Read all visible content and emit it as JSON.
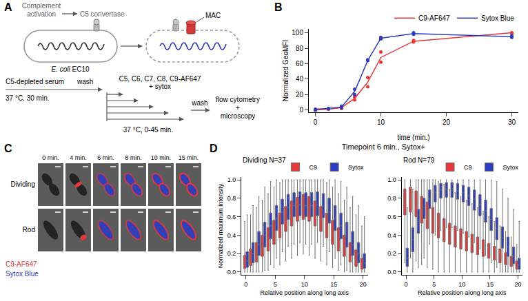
{
  "panel_a": {
    "letter": "A",
    "complement": [
      "Complement",
      "activation"
    ],
    "convertase": "C5 convertase",
    "mac": "MAC",
    "strain": "E. coli EC10",
    "step1": [
      "C5-depleted serum",
      "37 °C, 30 min."
    ],
    "wash1": "wash",
    "step2": [
      "C5, C6, C7, C8, C9-AF647",
      "+ sytox"
    ],
    "step2_condition": "37 °C, 0-45 min.",
    "wash2": "wash",
    "readout": [
      "flow cytometry",
      "+",
      "microscopy"
    ]
  },
  "panel_b": {
    "letter": "B"
  },
  "panel_c": {
    "letter": "C",
    "times": [
      "0 min.",
      "4 min.",
      "6 min.",
      "8 min.",
      "10 min.",
      "15 min."
    ],
    "rows": [
      "Dividing",
      "Rod"
    ],
    "channels": [
      {
        "name": "C9-AF647",
        "color": "#e5383b"
      },
      {
        "name": "Sytox Blue",
        "color": "#2e3cc0"
      }
    ]
  },
  "panel_d": {
    "letter": "D",
    "title": "Timepoint 6 min., Sytox+"
  },
  "chart_data": [
    {
      "type": "line",
      "x": [
        0,
        2,
        4,
        6,
        8,
        10,
        15,
        30
      ],
      "xlabel": "time (min.)",
      "ylabel": "Normalized GeoMFI",
      "xlim": [
        -1,
        31
      ],
      "xticks": [
        0,
        10,
        20,
        30
      ],
      "ylim": [
        -3,
        105
      ],
      "yticks": [
        0,
        20,
        40,
        60,
        80,
        100
      ],
      "grid": false,
      "legend": "top",
      "marker": "circle",
      "series": [
        {
          "name": "C9-AF647",
          "color": "#e5383b",
          "values": [
            0,
            1,
            3,
            15,
            36,
            68,
            89,
            100
          ],
          "replicates": [
            [
              0,
              1,
              2,
              13,
              30,
              62,
              88,
              100
            ],
            [
              0,
              1,
              4,
              17,
              42,
              75,
              90,
              99
            ]
          ]
        },
        {
          "name": "Sytox Blue",
          "color": "#2e3cc0",
          "values": [
            1,
            2,
            4,
            24,
            64,
            93,
            99,
            95
          ],
          "replicates": [
            [
              0,
              2,
              3,
              20,
              64,
              92,
              98,
              94
            ],
            [
              1,
              2,
              5,
              27,
              65,
              94,
              100,
              96
            ]
          ]
        }
      ]
    },
    {
      "type": "box",
      "title": "Dividing N=37",
      "x": [
        0,
        1,
        2,
        3,
        4,
        5,
        6,
        7,
        8,
        9,
        10,
        11,
        12,
        13,
        14,
        15,
        16,
        17,
        18,
        19,
        20
      ],
      "xlabel": "Relative position along long axis",
      "ylabel": "Normalized maximum intensity",
      "xlim": [
        -0.8,
        20.8
      ],
      "xticks": [
        0,
        5,
        10,
        15,
        20
      ],
      "ylim": [
        -0.03,
        1.03
      ],
      "yticks": [
        {
          "value": 0,
          "label": "0.0"
        },
        {
          "value": 0.2,
          "label": "0.2"
        },
        {
          "value": 0.4,
          "label": "0.4"
        },
        {
          "value": 0.6,
          "label": "0.6"
        },
        {
          "value": 0.8,
          "label": "0.8"
        },
        {
          "value": 1,
          "label": "1.0"
        }
      ],
      "grid": false,
      "legend": "top right",
      "series": [
        {
          "name": "C9",
          "color": "#e5383b",
          "q1": [
            0.04,
            0.07,
            0.11,
            0.17,
            0.23,
            0.3,
            0.37,
            0.44,
            0.5,
            0.55,
            0.57,
            0.55,
            0.5,
            0.44,
            0.37,
            0.3,
            0.23,
            0.17,
            0.11,
            0.06,
            0.03
          ],
          "median": [
            0.1,
            0.15,
            0.2,
            0.27,
            0.34,
            0.42,
            0.5,
            0.57,
            0.63,
            0.68,
            0.7,
            0.68,
            0.63,
            0.57,
            0.5,
            0.42,
            0.34,
            0.27,
            0.2,
            0.14,
            0.08
          ],
          "q3": [
            0.18,
            0.25,
            0.32,
            0.4,
            0.48,
            0.56,
            0.64,
            0.71,
            0.77,
            0.81,
            0.84,
            0.82,
            0.77,
            0.71,
            0.64,
            0.56,
            0.48,
            0.4,
            0.32,
            0.24,
            0.15
          ],
          "lower": [
            0,
            0,
            0,
            0,
            0.02,
            0.05,
            0.08,
            0.12,
            0.15,
            0.18,
            0.2,
            0.18,
            0.15,
            0.12,
            0.08,
            0.05,
            0.02,
            0,
            0,
            0,
            0
          ],
          "upper": [
            0.55,
            0.62,
            0.7,
            0.78,
            0.85,
            0.92,
            0.97,
            1,
            1,
            1,
            1,
            1,
            1,
            1,
            0.97,
            0.92,
            0.85,
            0.78,
            0.7,
            0.62,
            0.5
          ]
        },
        {
          "name": "Sytox",
          "color": "#2e3cc0",
          "q1": [
            0.05,
            0.1,
            0.18,
            0.27,
            0.36,
            0.45,
            0.52,
            0.57,
            0.6,
            0.61,
            0.6,
            0.6,
            0.61,
            0.59,
            0.53,
            0.45,
            0.36,
            0.27,
            0.18,
            0.1,
            0.04
          ],
          "median": [
            0.12,
            0.2,
            0.3,
            0.4,
            0.5,
            0.58,
            0.65,
            0.7,
            0.72,
            0.73,
            0.72,
            0.72,
            0.73,
            0.71,
            0.66,
            0.58,
            0.5,
            0.4,
            0.3,
            0.2,
            0.1
          ],
          "q3": [
            0.22,
            0.32,
            0.44,
            0.54,
            0.64,
            0.72,
            0.79,
            0.84,
            0.86,
            0.87,
            0.86,
            0.86,
            0.87,
            0.85,
            0.8,
            0.72,
            0.64,
            0.54,
            0.44,
            0.32,
            0.2
          ],
          "lower": [
            0,
            0,
            0,
            0.02,
            0.08,
            0.15,
            0.22,
            0.28,
            0.3,
            0.32,
            0.3,
            0.3,
            0.32,
            0.28,
            0.22,
            0.15,
            0.08,
            0.02,
            0,
            0,
            0
          ],
          "upper": [
            0.62,
            0.72,
            0.82,
            0.92,
            0.98,
            1,
            1,
            1,
            1,
            1,
            1,
            1,
            1,
            1,
            1,
            1,
            0.98,
            0.92,
            0.82,
            0.72,
            0.6
          ]
        }
      ]
    },
    {
      "type": "box",
      "title": "Rod N=79",
      "x": [
        0,
        1,
        2,
        3,
        4,
        5,
        6,
        7,
        8,
        9,
        10,
        11,
        12,
        13,
        14,
        15,
        16,
        17,
        18,
        19,
        20
      ],
      "xlabel": "Relative position along long axis",
      "xlim": [
        -0.8,
        20.8
      ],
      "xticks": [
        0,
        5,
        10,
        15,
        20
      ],
      "ylim": [
        -0.03,
        1.03
      ],
      "yticks": [
        {
          "value": 0,
          "label": "0.0"
        },
        {
          "value": 0.2,
          "label": "0.2"
        },
        {
          "value": 0.4,
          "label": "0.4"
        },
        {
          "value": 0.6,
          "label": "0.6"
        },
        {
          "value": 0.8,
          "label": "0.8"
        },
        {
          "value": 1,
          "label": "1.0"
        }
      ],
      "grid": false,
      "legend": "top right",
      "series": [
        {
          "name": "C9",
          "color": "#e5383b",
          "q1": [
            0.62,
            0.65,
            0.6,
            0.53,
            0.47,
            0.42,
            0.37,
            0.33,
            0.3,
            0.27,
            0.25,
            0.23,
            0.21,
            0.19,
            0.17,
            0.15,
            0.13,
            0.1,
            0.08,
            0.06,
            0.03
          ],
          "median": [
            0.78,
            0.8,
            0.75,
            0.68,
            0.62,
            0.56,
            0.5,
            0.45,
            0.41,
            0.38,
            0.35,
            0.33,
            0.3,
            0.28,
            0.25,
            0.22,
            0.2,
            0.17,
            0.14,
            0.11,
            0.07
          ],
          "q3": [
            0.9,
            0.92,
            0.88,
            0.82,
            0.76,
            0.7,
            0.64,
            0.58,
            0.53,
            0.5,
            0.47,
            0.44,
            0.41,
            0.38,
            0.35,
            0.31,
            0.28,
            0.25,
            0.21,
            0.17,
            0.12
          ],
          "lower": [
            0.1,
            0.15,
            0.12,
            0.08,
            0.05,
            0.03,
            0,
            0,
            0,
            0,
            0,
            0,
            0,
            0,
            0,
            0,
            0,
            0,
            0,
            0,
            0
          ],
          "upper": [
            1,
            1,
            1,
            1,
            1,
            1,
            0.98,
            0.95,
            0.9,
            0.86,
            0.82,
            0.78,
            0.74,
            0.7,
            0.66,
            0.6,
            0.55,
            0.5,
            0.44,
            0.38,
            0.3
          ]
        },
        {
          "name": "Sytox",
          "color": "#2e3cc0",
          "q1": [
            0.06,
            0.22,
            0.42,
            0.58,
            0.69,
            0.76,
            0.8,
            0.81,
            0.81,
            0.79,
            0.76,
            0.72,
            0.67,
            0.61,
            0.54,
            0.45,
            0.35,
            0.26,
            0.17,
            0.09,
            0.03
          ],
          "median": [
            0.15,
            0.35,
            0.55,
            0.7,
            0.8,
            0.86,
            0.89,
            0.9,
            0.9,
            0.88,
            0.86,
            0.83,
            0.79,
            0.73,
            0.66,
            0.57,
            0.47,
            0.37,
            0.27,
            0.17,
            0.08
          ],
          "q3": [
            0.26,
            0.48,
            0.68,
            0.8,
            0.89,
            0.94,
            0.96,
            0.97,
            0.97,
            0.96,
            0.94,
            0.92,
            0.89,
            0.84,
            0.78,
            0.69,
            0.59,
            0.49,
            0.38,
            0.27,
            0.15
          ],
          "lower": [
            0,
            0,
            0.05,
            0.15,
            0.3,
            0.4,
            0.45,
            0.48,
            0.48,
            0.45,
            0.42,
            0.38,
            0.32,
            0.25,
            0.18,
            0.1,
            0.05,
            0,
            0,
            0,
            0
          ],
          "upper": [
            0.7,
            0.9,
            1,
            1,
            1,
            1,
            1,
            1,
            1,
            1,
            1,
            1,
            1,
            1,
            1,
            1,
            0.98,
            0.9,
            0.8,
            0.68,
            0.55
          ]
        }
      ]
    }
  ]
}
